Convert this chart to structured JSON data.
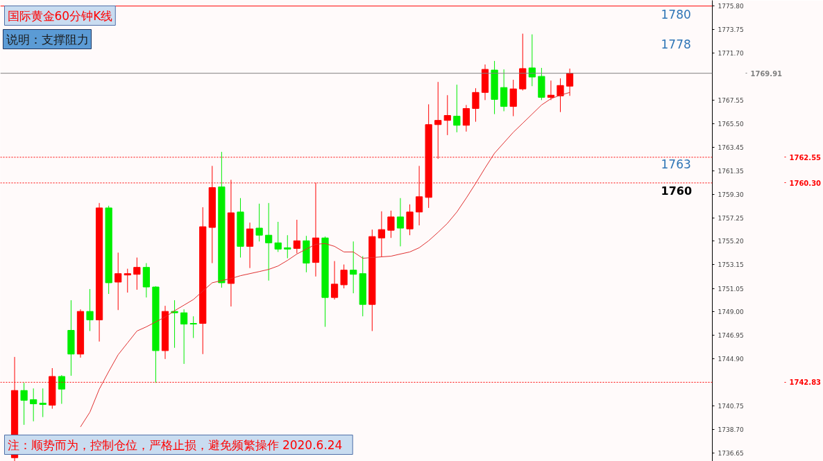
{
  "chart_data": {
    "type": "candlestick",
    "title": "国际黄金60分钟K线",
    "categories": [
      null,
      null,
      null,
      null,
      null,
      null,
      null,
      null,
      null,
      null,
      null,
      null,
      null,
      null,
      null,
      null,
      null,
      null,
      null,
      null,
      null,
      null,
      null,
      null,
      null,
      null,
      null,
      null,
      null,
      null,
      null,
      null,
      null,
      null,
      null,
      null,
      null,
      null,
      null,
      null,
      null,
      null,
      null,
      null,
      null,
      null,
      null,
      null,
      null,
      null,
      null,
      null,
      null,
      null,
      null,
      null,
      null,
      null,
      null,
      null
    ],
    "ohlc": [
      [
        1736.22,
        1745.05,
        1735.92,
        1742.11
      ],
      [
        1742.11,
        1742.78,
        1739.1,
        1741.25
      ],
      [
        1741.31,
        1742.29,
        1739.41,
        1740.94
      ],
      [
        1741.0,
        1742.29,
        1739.78,
        1740.88
      ],
      [
        1740.82,
        1744.07,
        1740.51,
        1743.34
      ],
      [
        1743.34,
        1743.46,
        1740.94,
        1742.23
      ],
      [
        1747.38,
        1750.02,
        1743.4,
        1745.3
      ],
      [
        1745.3,
        1749.22,
        1744.99,
        1749.04
      ],
      [
        1749.04,
        1751.0,
        1747.32,
        1748.3
      ],
      [
        1748.3,
        1758.54,
        1746.4,
        1758.11
      ],
      [
        1758.11,
        1758.3,
        1750.57,
        1751.55
      ],
      [
        1751.61,
        1754.19,
        1749.16,
        1752.35
      ],
      [
        1752.23,
        1752.78,
        1750.69,
        1752.35
      ],
      [
        1752.29,
        1753.76,
        1750.94,
        1752.9
      ],
      [
        1752.9,
        1753.27,
        1750.26,
        1751.18
      ],
      [
        1751.18,
        1751.25,
        1742.78,
        1745.6
      ],
      [
        1745.6,
        1749.53,
        1744.87,
        1749.04
      ],
      [
        1749.04,
        1750.02,
        1745.85,
        1748.92
      ],
      [
        1748.92,
        1749.22,
        1744.44,
        1747.93
      ],
      [
        1747.99,
        1748.61,
        1746.71,
        1747.93
      ],
      [
        1747.99,
        1758.17,
        1745.3,
        1756.46
      ],
      [
        1756.4,
        1761.79,
        1753.27,
        1759.89
      ],
      [
        1759.95,
        1763.02,
        1751.12,
        1751.55
      ],
      [
        1751.49,
        1760.57,
        1749.47,
        1757.68
      ],
      [
        1757.75,
        1758.97,
        1753.76,
        1754.74
      ],
      [
        1754.74,
        1756.82,
        1752.84,
        1756.27
      ],
      [
        1756.34,
        1758.48,
        1755.17,
        1755.72
      ],
      [
        1755.72,
        1758.54,
        1751.74,
        1755.05
      ],
      [
        1755.05,
        1756.89,
        1754.25,
        1754.5
      ],
      [
        1754.62,
        1755.72,
        1753.7,
        1754.5
      ],
      [
        1754.56,
        1757.07,
        1754.13,
        1755.23
      ],
      [
        1755.23,
        1755.66,
        1752.47,
        1753.27
      ],
      [
        1753.33,
        1760.32,
        1752.1,
        1755.48
      ],
      [
        1755.48,
        1755.6,
        1747.69,
        1750.26
      ],
      [
        1750.26,
        1753.45,
        1750.08,
        1751.43
      ],
      [
        1751.37,
        1753.15,
        1751.06,
        1752.66
      ],
      [
        1752.66,
        1755.17,
        1750.63,
        1752.29
      ],
      [
        1752.35,
        1753.88,
        1748.61,
        1749.65
      ],
      [
        1749.65,
        1756.21,
        1747.32,
        1755.6
      ],
      [
        1755.48,
        1757.81,
        1753.82,
        1756.21
      ],
      [
        1756.15,
        1757.87,
        1755.48,
        1757.32
      ],
      [
        1757.32,
        1758.97,
        1754.74,
        1756.34
      ],
      [
        1756.27,
        1758.42,
        1755.72,
        1757.75
      ],
      [
        1757.75,
        1761.79,
        1756.58,
        1759.09
      ],
      [
        1759.03,
        1767.19,
        1758.11,
        1765.41
      ],
      [
        1765.41,
        1769.15,
        1762.41,
        1765.78
      ],
      [
        1765.78,
        1767.99,
        1764.49,
        1766.21
      ],
      [
        1766.15,
        1768.91,
        1764.74,
        1765.35
      ],
      [
        1765.35,
        1767.13,
        1764.8,
        1766.82
      ],
      [
        1766.82,
        1768.6,
        1765.66,
        1768.23
      ],
      [
        1768.23,
        1770.68,
        1767.56,
        1770.25
      ],
      [
        1770.19,
        1770.99,
        1766.33,
        1767.62
      ],
      [
        1768.66,
        1770.25,
        1766.58,
        1767.0
      ],
      [
        1767.0,
        1769.34,
        1766.15,
        1768.54
      ],
      [
        1768.54,
        1773.38,
        1768.4,
        1770.32
      ],
      [
        1770.38,
        1773.32,
        1768.78,
        1769.58
      ],
      [
        1769.64,
        1770.38,
        1767.56,
        1767.8
      ],
      [
        1767.8,
        1769.27,
        1767.56,
        1767.99
      ],
      [
        1767.93,
        1769.46,
        1766.51,
        1768.84
      ],
      [
        1768.78,
        1770.32,
        1767.93,
        1769.91
      ]
    ],
    "colors": [
      "#ff0000",
      "#00ee00",
      "#00ee00",
      "#00ee00",
      "#ff0000",
      "#00ee00",
      "#00ee00",
      "#ff0000",
      "#00ee00",
      "#ff0000",
      "#00ee00",
      "#ff0000",
      "#ff0000",
      "#ff0000",
      "#00ee00",
      "#00ee00",
      "#ff0000",
      "#00ee00",
      "#00ee00",
      "#00ee00",
      "#ff0000",
      "#ff0000",
      "#00ee00",
      "#ff0000",
      "#00ee00",
      "#ff0000",
      "#00ee00",
      "#00ee00",
      "#00ee00",
      "#00ee00",
      "#ff0000",
      "#00ee00",
      "#ff0000",
      "#00ee00",
      "#ff0000",
      "#ff0000",
      "#00ee00",
      "#00ee00",
      "#ff0000",
      "#ff0000",
      "#ff0000",
      "#00ee00",
      "#ff0000",
      "#ff0000",
      "#ff0000",
      "#ff0000",
      "#ff0000",
      "#00ee00",
      "#ff0000",
      "#ff0000",
      "#ff0000",
      "#00ee00",
      "#00ee00",
      "#ff0000",
      "#ff0000",
      "#00ee00",
      "#00ee00",
      "#ff0000",
      "#ff0000",
      "#ff0000"
    ],
    "series": [
      {
        "type": "line",
        "color": "#e03030",
        "values": [
          null,
          null,
          null,
          null,
          null,
          null,
          null,
          1738.92,
          1740.21,
          1742.23,
          1743.77,
          1745.24,
          1746.28,
          1747.32,
          1747.69,
          1748.12,
          1748.55,
          1749.1,
          1749.59,
          1750.08,
          1750.82,
          1751.55,
          1751.74,
          1751.92,
          1752.17,
          1752.35,
          1752.53,
          1752.72,
          1753.02,
          1753.51,
          1754.07,
          1754.5,
          1754.92,
          1754.99,
          1754.74,
          1754.25,
          1754.25,
          1753.7,
          1753.76,
          1753.82,
          1753.88,
          1754.07,
          1754.25,
          1754.62,
          1755.23,
          1755.97,
          1756.76,
          1757.75,
          1758.97,
          1760.26,
          1761.61,
          1762.9,
          1763.82,
          1764.74,
          1765.53,
          1766.33,
          1767.13,
          1767.68,
          1767.99,
          1768.23
        ]
      }
    ],
    "ylim": [
      1735.9,
      1776.3
    ],
    "yticks": [
      {
        "value": 1775.8,
        "label": "1775.80"
      },
      {
        "value": 1773.75,
        "label": "1773.75"
      },
      {
        "value": 1771.7,
        "label": "1771.70"
      },
      {
        "value": 1767.55,
        "label": "1767.55"
      },
      {
        "value": 1765.5,
        "label": "1765.50"
      },
      {
        "value": 1763.45,
        "label": "1763.45"
      },
      {
        "value": 1761.35,
        "label": "1761.35"
      },
      {
        "value": 1759.3,
        "label": "1759.30"
      },
      {
        "value": 1757.25,
        "label": "1757.25"
      },
      {
        "value": 1755.2,
        "label": "1755.20"
      },
      {
        "value": 1753.15,
        "label": "1753.15"
      },
      {
        "value": 1751.05,
        "label": "1751.05"
      },
      {
        "value": 1749.0,
        "label": "1749.00"
      },
      {
        "value": 1746.95,
        "label": "1746.95"
      },
      {
        "value": 1744.9,
        "label": "1744.90"
      },
      {
        "value": 1740.75,
        "label": "1740.75"
      },
      {
        "value": 1738.7,
        "label": "1738.70"
      },
      {
        "value": 1736.65,
        "label": "1736.65"
      }
    ],
    "ref_lines": [
      {
        "axis": "y",
        "value": 1775.8,
        "color": "#ff0000",
        "line_style": "solid"
      },
      {
        "axis": "y",
        "value": 1769.91,
        "label": "1769.91",
        "color": "#808080",
        "line_style": "solid"
      },
      {
        "axis": "y",
        "value": 1762.55,
        "label": "1762.55",
        "color": "#ff0000",
        "line_style": "dashed"
      },
      {
        "axis": "y",
        "value": 1760.3,
        "label": "1760.30",
        "color": "#ff0000",
        "line_style": "dashed"
      },
      {
        "axis": "y",
        "value": 1742.83,
        "label": "1742.83",
        "color": "#ff0000",
        "line_style": "dashed"
      }
    ],
    "annotations": [
      "说明：支撑阻力",
      "1780",
      "1778",
      "1763",
      "1760",
      "注：顺势而为，控制仓位，严格止损，避免频繁操作   2020.6.24"
    ],
    "tick_labels": "y",
    "grid": false
  }
}
